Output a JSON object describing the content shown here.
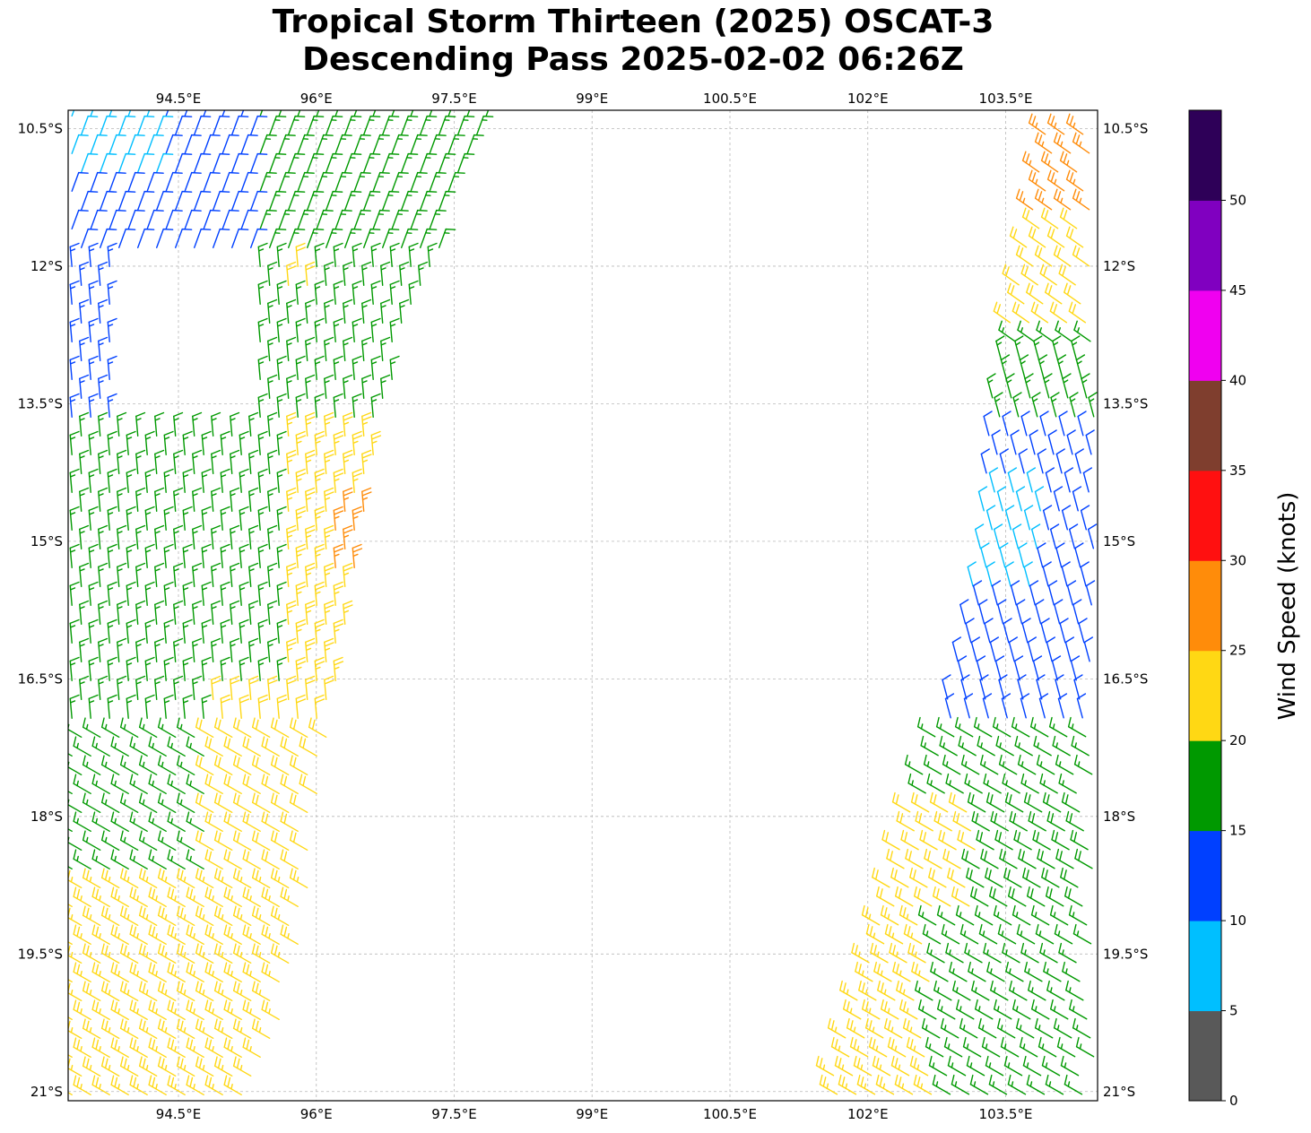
{
  "title": {
    "line1": "Tropical Storm Thirteen (2025) OSCAT-3",
    "line2": "Descending Pass 2025-02-02 06:26Z"
  },
  "map": {
    "lon_range": [
      93.3,
      104.5
    ],
    "lat_range": [
      -21.1,
      -10.3
    ],
    "lon_ticks": [
      94.5,
      96,
      97.5,
      99,
      100.5,
      102,
      103.5
    ],
    "lon_tick_labels": [
      "94.5°E",
      "96°E",
      "97.5°E",
      "99°E",
      "100.5°E",
      "102°E",
      "103.5°E"
    ],
    "lat_ticks": [
      -10.5,
      -12,
      -13.5,
      -15,
      -16.5,
      -18,
      -19.5,
      -21
    ],
    "lat_tick_labels": [
      "10.5°S",
      "12°S",
      "13.5°S",
      "15°S",
      "16.5°S",
      "18°S",
      "19.5°S",
      "21°S"
    ],
    "gridlines": true
  },
  "colorbar": {
    "label": "Wind Speed (knots)",
    "ticks": [
      0,
      5,
      10,
      15,
      20,
      25,
      30,
      35,
      40,
      45,
      50
    ],
    "tick_labels": [
      "0",
      "5",
      "10",
      "15",
      "20",
      "25",
      "30",
      "35",
      "40",
      "45",
      "50"
    ],
    "bins": [
      {
        "from": 0,
        "to": 5,
        "color": "#595959"
      },
      {
        "from": 5,
        "to": 10,
        "color": "#00bfff"
      },
      {
        "from": 10,
        "to": 15,
        "color": "#0040ff"
      },
      {
        "from": 15,
        "to": 20,
        "color": "#009900"
      },
      {
        "from": 20,
        "to": 25,
        "color": "#ffd814"
      },
      {
        "from": 25,
        "to": 30,
        "color": "#ff8c0a"
      },
      {
        "from": 30,
        "to": 35,
        "color": "#ff1010"
      },
      {
        "from": 35,
        "to": 40,
        "color": "#7f3e2e"
      },
      {
        "from": 40,
        "to": 45,
        "color": "#f000f0"
      },
      {
        "from": 45,
        "to": 50,
        "color": "#8000c0"
      },
      {
        "from": 50,
        "to": 55,
        "color": "#2e0058"
      }
    ]
  },
  "swaths": {
    "west": {
      "edges": [
        {
          "lat": -10.3,
          "lon_min": 93.3,
          "lon_max": 97.95
        },
        {
          "lat": -12.0,
          "lon_min": 93.3,
          "lon_max": 97.3
        },
        {
          "lat": -13.5,
          "lon_min": 93.3,
          "lon_max": 96.8
        },
        {
          "lat": -15.0,
          "lon_min": 93.3,
          "lon_max": 96.55
        },
        {
          "lat": -16.5,
          "lon_min": 93.3,
          "lon_max": 96.3
        },
        {
          "lat": -18.0,
          "lon_min": 93.3,
          "lon_max": 96.05
        },
        {
          "lat": -19.5,
          "lon_min": 93.3,
          "lon_max": 95.85
        },
        {
          "lat": -21.1,
          "lon_min": 93.3,
          "lon_max": 95.4
        }
      ],
      "wind_regions": [
        {
          "lat_min": -21.1,
          "lat_max": -18.7,
          "speed": 23
        },
        {
          "lat_min": -18.7,
          "lat_max": -16.6,
          "lon_max": 94.8,
          "speed": 17
        },
        {
          "lat_min": -18.7,
          "lat_max": -16.6,
          "lon_min": 94.8,
          "speed": 22
        },
        {
          "lat_min": -16.6,
          "lat_max": -13.8,
          "lon_max": 95.6,
          "speed": 17
        },
        {
          "lat_min": -16.6,
          "lat_max": -13.8,
          "lon_min": 95.6,
          "speed": 23
        },
        {
          "lat_min": -15.3,
          "lat_max": -14.5,
          "lon_min": 96.2,
          "speed": 27
        },
        {
          "lat_min": -13.8,
          "lat_max": -10.3,
          "lon_min": 95.3,
          "speed": 16
        },
        {
          "lat_min": -13.8,
          "lat_max": -12.0,
          "lon_max": 93.8,
          "speed": 13
        },
        {
          "lat_min": -12.0,
          "lat_max": -10.3,
          "lon_max": 95.3,
          "speed": 12
        },
        {
          "lat_min": -11.0,
          "lat_max": -10.3,
          "lon_max": 94.3,
          "speed": 8
        },
        {
          "lat_min": -12.3,
          "lat_max": -11.8,
          "lon_min": 95.6,
          "lon_max": 96.0,
          "speed": 22
        }
      ]
    },
    "east": {
      "edges": [
        {
          "lat": -10.5,
          "lon_min": 103.9,
          "lon_max": 104.5
        },
        {
          "lat": -12.0,
          "lon_min": 103.65,
          "lon_max": 104.5
        },
        {
          "lat": -13.5,
          "lon_min": 103.3,
          "lon_max": 104.5
        },
        {
          "lat": -15.0,
          "lon_min": 103.2,
          "lon_max": 104.5
        },
        {
          "lat": -16.5,
          "lon_min": 102.9,
          "lon_max": 104.5
        },
        {
          "lat": -18.0,
          "lon_min": 102.4,
          "lon_max": 104.5
        },
        {
          "lat": -19.5,
          "lon_min": 102.0,
          "lon_max": 104.5
        },
        {
          "lat": -21.1,
          "lon_min": 101.5,
          "lon_max": 104.5
        }
      ],
      "wind_regions": [
        {
          "lat_min": -11.5,
          "lat_max": -10.5,
          "speed": 27
        },
        {
          "lat_min": -12.8,
          "lat_max": -11.5,
          "speed": 22
        },
        {
          "lat_min": -13.8,
          "lat_max": -12.8,
          "speed": 17
        },
        {
          "lat_min": -17.0,
          "lat_max": -13.8,
          "speed": 12
        },
        {
          "lat_min": -15.5,
          "lat_max": -14.3,
          "lon_max": 103.9,
          "speed": 8
        },
        {
          "lat_min": -17.8,
          "lat_max": -17.0,
          "speed": 17
        },
        {
          "lat_min": -19.0,
          "lat_max": -17.8,
          "lon_max": 103.2,
          "speed": 22
        },
        {
          "lat_min": -19.0,
          "lat_max": -17.8,
          "lon_min": 103.2,
          "speed": 18
        },
        {
          "lat_min": -21.1,
          "lat_max": -19.0,
          "lon_max": 102.7,
          "speed": 23
        },
        {
          "lat_min": -21.1,
          "lat_max": -19.0,
          "lon_min": 102.7,
          "speed": 17
        }
      ]
    }
  }
}
